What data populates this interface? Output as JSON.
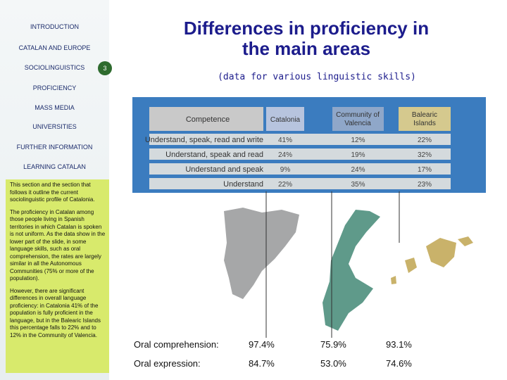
{
  "navigation": {
    "items": [
      "INTRODUCTION",
      "CATALAN AND EUROPE",
      "SOCIOLINGUISTICS",
      "PROFICIENCY",
      "MASS MEDIA",
      "UNIVERSITIES",
      "FURTHER INFORMATION",
      "LEARNING CATALAN"
    ]
  },
  "page_number": "3",
  "sidebar": {
    "paragraphs": [
      "This section and the section that follows it outline the current sociolinguistic profile of Catalonia.",
      "The proficiency in Catalan among those people living in Spanish territories in which Catalan is spoken is not uniform. As the data show in the lower part of the slide, in some language skills, such as oral comprehension, the rates are largely similar in all the Autonomous Communities (75% or more of the population).",
      "However, there are significant differences in overall language proficiency: in Catalonia 41% of the population is fully proficient in the language, but in the Balearic Islands this percentage falls to 22% and to 12% in the Community of Valencia."
    ]
  },
  "header": {
    "title": "Differences in proficiency in the main areas",
    "subtitle": "(data for various linguistic skills)"
  },
  "table": {
    "columns": [
      "Competence",
      "Catalonia",
      "Community of Valencia",
      "Balearic Islands"
    ],
    "rows": [
      [
        "Understand, speak, read and write",
        "41%",
        "12%",
        "22%"
      ],
      [
        "Understand, speak and read",
        "24%",
        "19%",
        "32%"
      ],
      [
        "Understand and speak",
        "9%",
        "24%",
        "17%"
      ],
      [
        "Understand",
        "22%",
        "35%",
        "23%"
      ]
    ]
  },
  "summary": {
    "rows": [
      [
        "Oral comprehension:",
        "97.4%",
        "75.9%",
        "93.1%"
      ],
      [
        "Oral expression:",
        "84.7%",
        "53.0%",
        "74.6%"
      ]
    ]
  }
}
